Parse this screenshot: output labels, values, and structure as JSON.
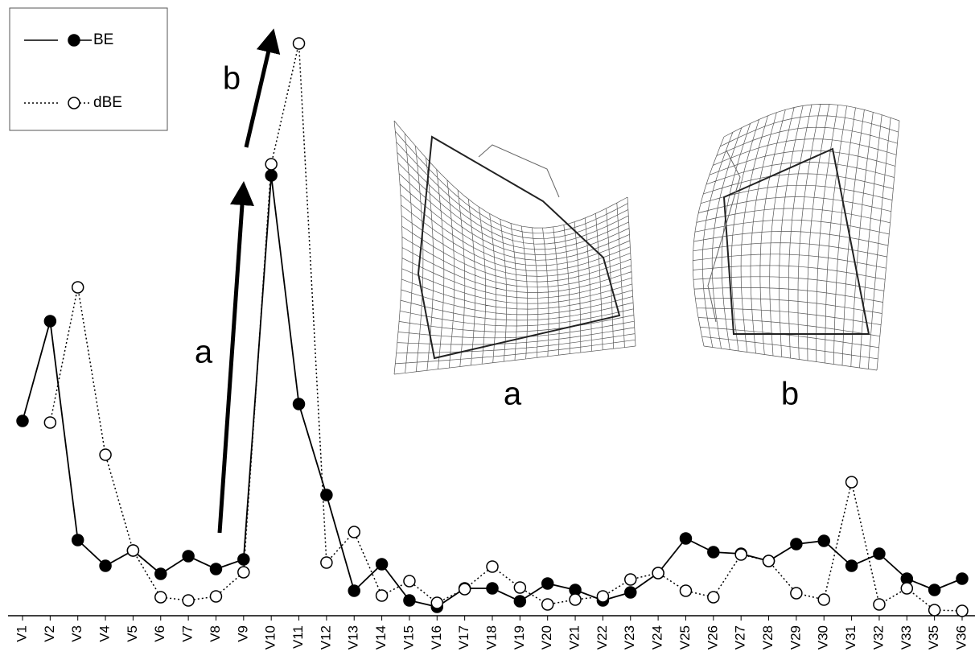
{
  "chart_data": {
    "type": "line",
    "categories": [
      "V1",
      "V2",
      "V3",
      "V4",
      "V5",
      "V6",
      "V7",
      "V8",
      "V9",
      "V10",
      "V11",
      "V12",
      "V13",
      "V14",
      "V15",
      "V16",
      "V17",
      "V18",
      "V19",
      "V20",
      "V21",
      "V22",
      "V23",
      "V24",
      "V25",
      "V26",
      "V27",
      "V28",
      "V29",
      "V30",
      "V31",
      "V32",
      "V33",
      "V35",
      "V36"
    ],
    "series": [
      {
        "name": "BE",
        "color": "#000000",
        "dash": "solid",
        "marker": "filled",
        "values": [
          242,
          366,
          94,
          62,
          81,
          52,
          74,
          58,
          70,
          547,
          263,
          150,
          31,
          64,
          19,
          11,
          34,
          34,
          18,
          40,
          32,
          19,
          29,
          53,
          96,
          79,
          77,
          68,
          89,
          93,
          62,
          77,
          46,
          32,
          46
        ]
      },
      {
        "name": "dBE",
        "color": "#000000",
        "dash": "dotted",
        "marker": "open",
        "values": [
          null,
          240,
          408,
          200,
          81,
          23,
          19,
          24,
          54,
          561,
          711,
          66,
          104,
          25,
          43,
          16,
          33,
          61,
          35,
          14,
          20,
          24,
          45,
          53,
          31,
          23,
          76,
          68,
          28,
          20,
          166,
          14,
          34,
          7,
          6
        ]
      }
    ],
    "ylim": [
      0,
      765
    ],
    "legend": "upper left",
    "annotations": {
      "arrow_a": "a",
      "arrow_b": "b",
      "inset_a": "a",
      "inset_b": "b"
    }
  }
}
